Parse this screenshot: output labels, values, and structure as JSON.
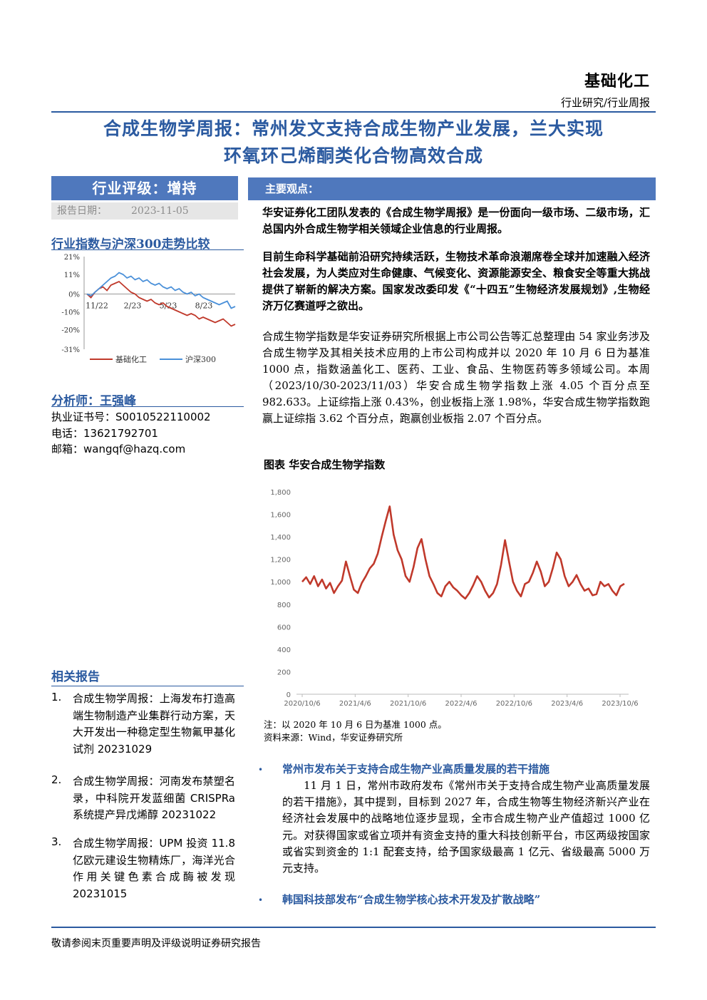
{
  "header": {
    "sector": "基础化工",
    "doc_type": "行业研究/行业周报",
    "title_line1": "合成生物学周报：常州发文支持合成生物产业发展，兰大实现",
    "title_line2": "环氧环己烯酮类化合物高效合成"
  },
  "sidebar": {
    "rating": "行业评级：增持",
    "date_label": "报告日期：",
    "date_value": "2023-11-05",
    "index_title": "行业指数与沪深300走势比较",
    "analyst_head": "分析师：王强峰",
    "cert": "执业证书号：S0010522110002",
    "phone": "电话：13621792701",
    "email": "邮箱：wangqf@hazq.com",
    "related_head": "相关报告",
    "related": [
      {
        "num": "1.",
        "text": "合成生物学周报：上海发布打造高端生物制造产业集群行动方案，天大开发出一种稳定型生物氟甲基化试剂 20231029"
      },
      {
        "num": "2.",
        "text": "合成生物学周报：河南发布禁塑名录，中科院开发蓝细菌 CRISPRa 系统提产异戊烯醇 20231022"
      },
      {
        "num": "3.",
        "text": "合成生物学周报：UPM 投资 11.8 亿欧元建设生物精炼厂，海洋光合作用关键色素合成酶被发现 20231015"
      }
    ]
  },
  "main": {
    "section_label": "主要观点：",
    "p1": "华安证券化工团队发表的《合成生物学周报》是一份面向一级市场、二级市场，汇总国内外合成生物学相关领域企业信息的行业周报。",
    "p2": "目前生命科学基础前沿研究持续活跃，生物技术革命浪潮席卷全球并加速融入经济社会发展，为人类应对生命健康、气候变化、资源能源安全、粮食安全等重大挑战提供了崭新的解决方案。国家发改委印发《“十四五”生物经济发展规划》,生物经济万亿赛道呼之欲出。",
    "p3": "合成生物学指数是华安证券研究所根据上市公司公告等汇总整理由 54 家业务涉及合成生物学及其相关技术应用的上市公司构成并以 2020 年 10 月 6 日为基准 1000 点，指数涵盖化工、医药、工业、食品、生物医药等多领域公司。本周（2023/10/30-2023/11/03）华安合成生物学指数上涨 4.05 个百分点至 982.633。上证综指上涨 0.43%，创业板指上涨 1.98%，华安合成生物学指数跑赢上证综指 3.62 个百分点，跑赢创业板指 2.07 个百分点。",
    "figure_title": "图表 华安合成生物学指数",
    "note1": "注：以 2020 年 10 月 6 日为基准 1000 点。",
    "note2": "资料来源：Wind，华安证券研究所",
    "bullet1_head": "常州市发布关于支持合成生物产业高质量发展的若干措施",
    "bullet1_body": "11 月 1 日，常州市政府发布《常州市关于支持合成生物产业高质量发展的若干措施》，其中提到，目标到 2027 年，合成生物等生物经济新兴产业在经济社会发展中的战略地位逐步显现，全市合成生物产业产值超过 1000 亿元。对获得国家或省立项并有资金支持的重大科技创新平台，市区两级按国家或省实到资金的 1:1 配套支持，给予国家级最高 1 亿元、省级最高 5000 万元支持。",
    "bullet2_head": "韩国科技部发布“合成生物学核心技术开发及扩散战略”",
    "bullet_symbol": "•"
  },
  "footer": {
    "disclaimer": "敬请参阅末页重要声明及评级说明证券研究报告"
  },
  "colors": {
    "brand_blue": "#2b5aa0",
    "bar_blue": "#4f78bd",
    "series_red": "#c0392b",
    "series_blue": "#4a90d9"
  },
  "chart_data": [
    {
      "type": "line",
      "y_tick_labels": [
        "21%",
        "11%",
        "0%",
        "-10%",
        "-20%",
        "-31%"
      ],
      "ylim": [
        -31,
        21
      ],
      "x_tick_labels": [
        "11/22",
        "2/23",
        "5/23",
        "8/23"
      ],
      "series": [
        {
          "name": "基础化工",
          "color": "#c0392b",
          "values": [
            0,
            -2,
            1,
            3,
            4,
            2,
            5,
            6,
            7,
            5,
            3,
            1,
            0,
            -2,
            -3,
            -4,
            -3,
            -5,
            -6,
            -5,
            -7,
            -8,
            -9,
            -10,
            -11,
            -12,
            -11,
            -12,
            -14,
            -13,
            -14,
            -15,
            -16,
            -15,
            -14,
            -16,
            -18,
            -17
          ]
        },
        {
          "name": "沪深300",
          "color": "#4a90d9",
          "values": [
            0,
            -1,
            1,
            3,
            5,
            7,
            9,
            10,
            12,
            11,
            9,
            10,
            8,
            9,
            7,
            8,
            6,
            5,
            6,
            4,
            3,
            4,
            2,
            3,
            1,
            0,
            1,
            -1,
            0,
            -2,
            -3,
            -4,
            -5,
            -6,
            -5,
            -4,
            -8,
            -7
          ]
        }
      ]
    },
    {
      "type": "line",
      "title": "华安合成生物学指数",
      "ylim": [
        0,
        1800
      ],
      "y_ticks": [
        0,
        200,
        400,
        600,
        800,
        1000,
        1200,
        1400,
        1600,
        1800
      ],
      "y_tick_labels": [
        "0",
        "200",
        "400",
        "600",
        "800",
        "1,000",
        "1,200",
        "1,400",
        "1,600",
        "1,800"
      ],
      "x_tick_labels": [
        "2020/10/6",
        "2021/4/6",
        "2021/10/6",
        "2022/4/6",
        "2022/10/6",
        "2023/4/6",
        "2023/10/6"
      ],
      "series": [
        {
          "name": "华安合成生物学指数",
          "color": "#c0392b",
          "values": [
            1000,
            1040,
            980,
            1050,
            960,
            1020,
            940,
            990,
            900,
            960,
            1010,
            1180,
            1050,
            930,
            900,
            990,
            1050,
            1120,
            1160,
            1250,
            1400,
            1540,
            1670,
            1420,
            1280,
            1200,
            1050,
            1000,
            1130,
            1300,
            1380,
            1200,
            1050,
            980,
            900,
            870,
            960,
            1000,
            950,
            920,
            880,
            850,
            900,
            970,
            1050,
            1000,
            920,
            860,
            900,
            980,
            1150,
            1370,
            1180,
            1000,
            920,
            870,
            980,
            1000,
            1080,
            1180,
            1090,
            960,
            1000,
            1120,
            1260,
            1200,
            1050,
            960,
            1000,
            1060,
            980,
            920,
            940,
            880,
            890,
            1000,
            960,
            980,
            920,
            880,
            960,
            982.633
          ]
        }
      ]
    }
  ]
}
